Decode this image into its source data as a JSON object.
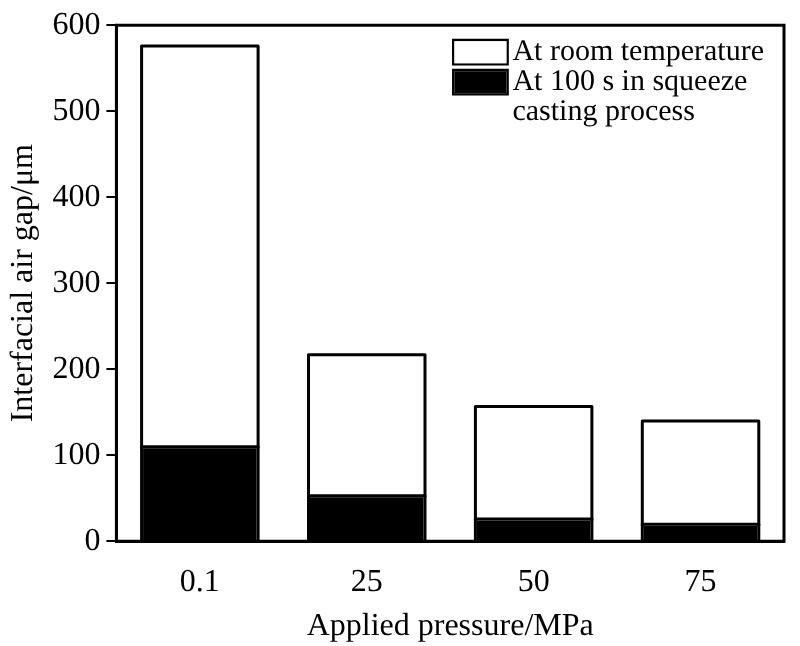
{
  "chart_data": {
    "type": "bar",
    "xlabel": "Applied pressure/MPa",
    "ylabel": "Interfacial air gap/μm",
    "categories": [
      "0.1",
      "25",
      "50",
      "75"
    ],
    "stacked": true,
    "series": [
      {
        "name": "At 100 s in squeeze casting process",
        "color": "#000000",
        "values": [
          108,
          51,
          24,
          18
        ]
      },
      {
        "name": "At room temperature",
        "color": "#ffffff",
        "values": [
          466,
          164,
          131,
          120
        ]
      }
    ],
    "ylim": [
      0,
      600
    ],
    "yticks": [
      0,
      100,
      200,
      300,
      400,
      500,
      600
    ],
    "grid": false,
    "legend": "top right"
  }
}
